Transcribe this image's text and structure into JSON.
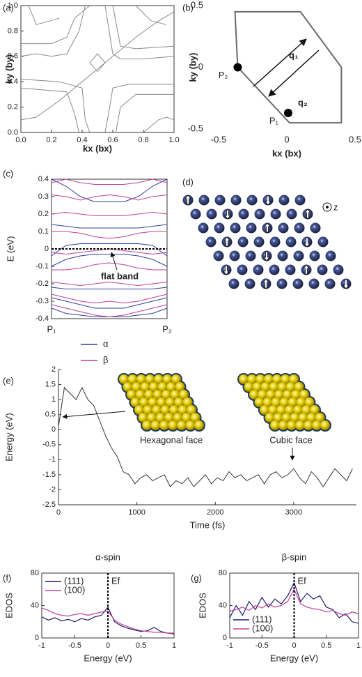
{
  "chart_data": [
    {
      "type": "contour",
      "panel_label": "(a)",
      "xlabel": "kx (bx)",
      "ylabel": "ky (by)",
      "color": "#8a8a8a",
      "xlim": [
        0,
        1
      ],
      "ylim": [
        0,
        1
      ],
      "xticks": [
        {
          "value": 0,
          "label": "0.0"
        },
        0.2,
        0.4,
        0.6,
        0.8,
        {
          "value": 1,
          "label": "1.0"
        }
      ],
      "yticks": [
        {
          "value": 0,
          "label": "0.0"
        },
        0.2,
        0.4,
        0.6,
        0.8,
        {
          "value": 1,
          "label": "1.0"
        }
      ],
      "contours": [
        {
          "x": [
            0,
            0.2,
            0.3,
            0.35,
            0.4,
            0.45
          ],
          "y": [
            0.7,
            0.7,
            0.75,
            0.9,
            0.95,
            1
          ]
        },
        {
          "x": [
            0,
            0.1,
            0.2,
            0.3,
            0.38,
            0.42
          ],
          "y": [
            0.6,
            0.62,
            0.6,
            0.62,
            0.8,
            1
          ]
        },
        {
          "x": [
            0.55,
            0.6,
            0.65,
            0.8,
            1
          ],
          "y": [
            1,
            0.62,
            0.58,
            0.58,
            0.6
          ]
        },
        {
          "x": [
            0.6,
            0.65,
            0.75,
            1
          ],
          "y": [
            1,
            0.68,
            0.66,
            0.68
          ]
        },
        {
          "x": [
            0,
            0.25,
            0.4,
            0.42,
            0.45
          ],
          "y": [
            0.42,
            0.4,
            0.35,
            0.1,
            0
          ]
        },
        {
          "x": [
            0,
            0.3,
            0.35,
            0.38
          ],
          "y": [
            0.35,
            0.32,
            0.15,
            0
          ]
        },
        {
          "x": [
            1,
            0.7,
            0.6,
            0.58,
            0.55
          ],
          "y": [
            0.38,
            0.38,
            0.35,
            0.2,
            0
          ]
        },
        {
          "x": [
            1,
            0.75,
            0.65,
            0.62
          ],
          "y": [
            0.3,
            0.3,
            0.2,
            0
          ]
        },
        {
          "x": [
            0,
            0.1,
            0.25,
            0.45,
            0.55,
            0.75,
            0.9,
            1
          ],
          "y": [
            0.1,
            0.12,
            0.25,
            0.45,
            0.55,
            0.75,
            0.88,
            0.95
          ]
        },
        {
          "x": [
            0.45,
            0.5,
            0.55,
            0.5,
            0.45
          ],
          "y": [
            0.55,
            0.62,
            0.55,
            0.48,
            0.55
          ]
        },
        {
          "x": [
            0.05,
            0.1,
            0.25
          ],
          "y": [
            1,
            0.85,
            0.9
          ]
        },
        {
          "x": [
            0.8,
            0.9,
            0.95,
            1
          ],
          "y": [
            0,
            0.1,
            0.12,
            0.1
          ]
        },
        {
          "x": [
            0.75,
            0.85,
            0.95
          ],
          "y": [
            1,
            0.88,
            0.85
          ]
        }
      ]
    },
    {
      "type": "polygon",
      "panel_label": "(b)",
      "xlabel": "kx (bx)",
      "ylabel": "ky (by)",
      "color": "#6a6a6a",
      "xlim": [
        -0.5,
        0.5
      ],
      "ylim": [
        -0.5,
        0.5
      ],
      "xticks": [
        -0.5,
        0,
        0.5
      ],
      "yticks": [
        -0.5,
        0,
        0.5
      ],
      "x": [
        -0.38,
        0.1,
        0.4,
        0.4,
        0.02,
        -0.36
      ],
      "y": [
        0.45,
        0.45,
        0,
        -0.45,
        -0.45,
        0
      ],
      "points": [
        {
          "label": "P₁",
          "x": 0.01,
          "y": -0.37
        },
        {
          "label": "P₂",
          "x": -0.36,
          "y": 0
        }
      ],
      "arrow_labels": [
        "q₁",
        "q₂"
      ]
    },
    {
      "type": "band",
      "panel_label": "(c)",
      "ylabel": "E (eV)",
      "annotation": "flat band",
      "reference_line": 0,
      "ylim": [
        -0.4,
        0.4
      ],
      "yticks": [
        -0.4,
        -0.3,
        -0.2,
        -0.1,
        0,
        0.1,
        0.2,
        0.3,
        0.4
      ],
      "categories": [
        "P₁",
        null,
        null,
        null,
        null,
        null,
        null,
        null,
        "P₂"
      ],
      "series": [
        {
          "name": "α",
          "color": "#2e3f9e",
          "bands": [
            [
              0.4,
              0.36,
              0.3,
              0.27,
              0.27,
              0.27,
              0.3,
              0.36,
              0.4
            ],
            [
              0.14,
              0.13,
              0.12,
              0.12,
              0.12,
              0.12,
              0.12,
              0.13,
              0.14
            ],
            [
              -0.04,
              0.02,
              0.03,
              0.03,
              0.03,
              0.03,
              0.03,
              0.02,
              -0.04
            ],
            [
              -0.1,
              -0.06,
              -0.04,
              -0.03,
              -0.03,
              -0.03,
              -0.04,
              -0.06,
              -0.1
            ],
            [
              -0.22,
              -0.23,
              -0.23,
              -0.23,
              -0.23,
              -0.23,
              -0.23,
              -0.23,
              -0.22
            ],
            [
              -0.28,
              -0.3,
              -0.32,
              -0.34,
              -0.34,
              -0.34,
              -0.32,
              -0.3,
              -0.28
            ],
            [
              -0.34,
              -0.37,
              -0.38,
              -0.39,
              -0.39,
              -0.39,
              -0.38,
              -0.37,
              -0.34
            ]
          ]
        },
        {
          "name": "β",
          "color": "#c23c9a",
          "bands": [
            [
              0.38,
              0.4,
              0.38,
              0.37,
              0.37,
              0.37,
              0.38,
              0.4,
              0.38
            ],
            [
              0.31,
              0.3,
              0.28,
              0.3,
              0.31,
              0.3,
              0.28,
              0.3,
              0.31
            ],
            [
              0.2,
              0.21,
              0.2,
              0.19,
              0.19,
              0.19,
              0.2,
              0.21,
              0.2
            ],
            [
              0.1,
              0.1,
              0.09,
              0.07,
              0.06,
              0.07,
              0.09,
              0.1,
              0.1
            ],
            [
              -0.02,
              -0.03,
              -0.02,
              -0.01,
              0,
              -0.01,
              -0.02,
              -0.03,
              -0.02
            ],
            [
              -0.12,
              -0.12,
              -0.11,
              -0.09,
              -0.08,
              -0.09,
              -0.11,
              -0.12,
              -0.12
            ],
            [
              -0.19,
              -0.2,
              -0.21,
              -0.2,
              -0.19,
              -0.2,
              -0.21,
              -0.2,
              -0.19
            ],
            [
              -0.26,
              -0.28,
              -0.3,
              -0.31,
              -0.3,
              -0.31,
              -0.3,
              -0.28,
              -0.26
            ],
            [
              -0.32,
              -0.34,
              -0.36,
              -0.38,
              -0.39,
              -0.38,
              -0.36,
              -0.34,
              -0.32
            ]
          ]
        }
      ]
    },
    {
      "type": "line",
      "panel_label": "(e)",
      "xlabel": "Time (fs)",
      "ylabel": "Energy (eV)",
      "color": "#333333",
      "annotations": [
        "Hexagonal face",
        "Cubic face"
      ],
      "xlim": [
        0,
        3800
      ],
      "ylim": [
        -2.5,
        2
      ],
      "xticks": [
        0,
        1000,
        2000,
        3000
      ],
      "yticks": [
        -2.5,
        -2,
        -1.5,
        -1,
        -0.5,
        0,
        0.5,
        1,
        1.5,
        2
      ],
      "x": [
        0,
        75,
        150,
        225,
        300,
        375,
        450,
        525,
        600,
        675,
        750,
        825,
        900,
        975,
        1050,
        1125,
        1200,
        1275,
        1350,
        1425,
        1500,
        1575,
        1650,
        1725,
        1800,
        1875,
        1950,
        2025,
        2100,
        2175,
        2250,
        2325,
        2400,
        2475,
        2550,
        2625,
        2700,
        2775,
        2850,
        2925,
        3000,
        3075,
        3150,
        3225,
        3300,
        3375,
        3450,
        3525,
        3600,
        3675,
        3750
      ],
      "values": [
        0.1,
        1.4,
        1.2,
        1.0,
        1.4,
        1.0,
        0.8,
        0.3,
        -0.2,
        -0.6,
        -0.9,
        -1.4,
        -1.5,
        -1.8,
        -1.6,
        -1.5,
        -1.7,
        -1.6,
        -1.5,
        -1.9,
        -1.7,
        -1.8,
        -1.6,
        -1.9,
        -1.7,
        -1.5,
        -1.8,
        -1.6,
        -1.7,
        -1.4,
        -1.6,
        -1.5,
        -1.7,
        -1.6,
        -1.5,
        -1.8,
        -1.5,
        -1.4,
        -1.6,
        -1.5,
        -1.3,
        -1.6,
        -1.8,
        -1.4,
        -1.6,
        -1.9,
        -1.6,
        -1.3,
        -1.5,
        -1.7,
        -1.3
      ]
    },
    {
      "type": "line",
      "panel_label": "(f)",
      "title": "α-spin",
      "xlabel": "Energy (eV)",
      "ylabel": "EDOS",
      "ref_label": "Ef",
      "reference_x": 0,
      "xlim": [
        -1,
        1
      ],
      "ylim": [
        0,
        80
      ],
      "xticks": [
        -1,
        -0.5,
        0,
        0.5,
        1
      ],
      "yticks": [
        0,
        40,
        80
      ],
      "x": [
        -1,
        -0.9,
        -0.8,
        -0.7,
        -0.6,
        -0.5,
        -0.4,
        -0.3,
        -0.2,
        -0.1,
        0,
        0.1,
        0.2,
        0.3,
        0.4,
        0.5,
        0.6,
        0.7,
        0.8,
        0.9,
        1
      ],
      "series": [
        {
          "name": "(111)",
          "color": "#1b1b6e",
          "values": [
            26,
            22,
            25,
            21,
            23,
            20,
            24,
            22,
            26,
            28,
            38,
            20,
            15,
            12,
            10,
            8,
            9,
            13,
            8,
            6,
            5
          ]
        },
        {
          "name": "(100)",
          "color": "#c0409a",
          "values": [
            37,
            34,
            30,
            28,
            27,
            29,
            30,
            28,
            30,
            32,
            33,
            22,
            17,
            14,
            11,
            9,
            8,
            7,
            7,
            6,
            6
          ]
        }
      ]
    },
    {
      "type": "line",
      "panel_label": "(g)",
      "title": "β-spin",
      "xlabel": "Energy (eV)",
      "ylabel": "EDOS",
      "ref_label": "Ef",
      "reference_x": 0,
      "xlim": [
        -1,
        1
      ],
      "ylim": [
        0,
        80
      ],
      "xticks": [
        -1,
        -0.5,
        0,
        0.5,
        1
      ],
      "yticks": [
        0,
        40,
        80
      ],
      "x": [
        -1,
        -0.9,
        -0.8,
        -0.7,
        -0.6,
        -0.5,
        -0.4,
        -0.3,
        -0.2,
        -0.1,
        0,
        0.1,
        0.2,
        0.3,
        0.4,
        0.5,
        0.6,
        0.7,
        0.8,
        0.9,
        1
      ],
      "series": [
        {
          "name": "(111)",
          "color": "#1b1b6e",
          "values": [
            25,
            40,
            28,
            45,
            35,
            50,
            38,
            48,
            42,
            52,
            68,
            45,
            55,
            48,
            52,
            38,
            35,
            25,
            30,
            20,
            18
          ]
        },
        {
          "name": "(100)",
          "color": "#c0409a",
          "values": [
            33,
            35,
            38,
            34,
            40,
            37,
            42,
            38,
            40,
            45,
            60,
            42,
            38,
            36,
            35,
            32,
            34,
            30,
            28,
            32,
            30
          ]
        }
      ]
    }
  ],
  "panel_d": {
    "panel_label": "(d)",
    "axis_label": "z"
  }
}
